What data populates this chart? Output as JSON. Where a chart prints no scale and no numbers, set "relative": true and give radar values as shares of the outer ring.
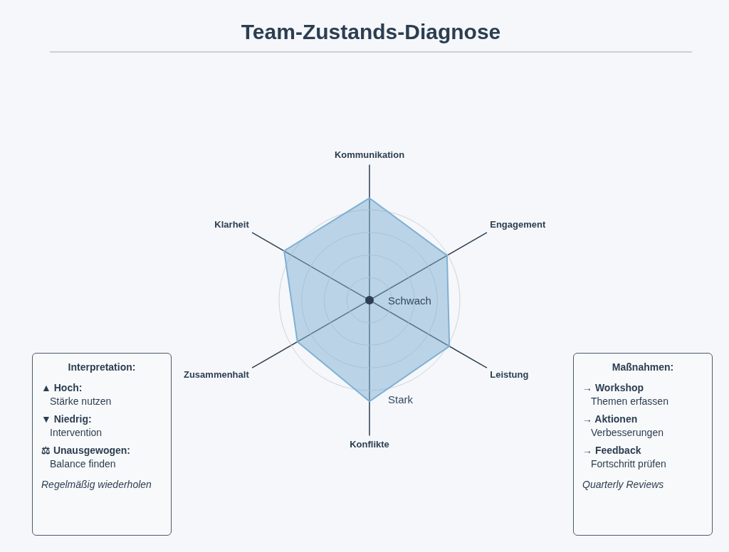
{
  "chart_data": {
    "type": "radar",
    "title": "Team-Zustands-Diagnose",
    "relative": true,
    "categories": [
      "Kommunikation",
      "Engagement",
      "Leistung",
      "Konflikte",
      "Zusammenhalt",
      "Klarheit"
    ],
    "series": [
      {
        "color": "#7fb0d4",
        "values": [
          1.13,
          0.99,
          1.02,
          1.12,
          0.92,
          1.09
        ]
      }
    ],
    "annotations": [
      "Schwach",
      "Stark",
      "Interpretation:",
      "▲ Hoch:",
      "Stärke nutzen",
      "▼ Niedrig:",
      "Intervention",
      "⚖ Unausgewogen:",
      "Balance finden",
      "Regelmäßig wiederholen",
      "Maßnahmen:",
      "→ Workshop",
      "Themen erfassen",
      "→ Aktionen",
      "Verbesserungen",
      "→ Feedback",
      "Fortschritt prüfen",
      "Quarterly Reviews"
    ]
  }
}
